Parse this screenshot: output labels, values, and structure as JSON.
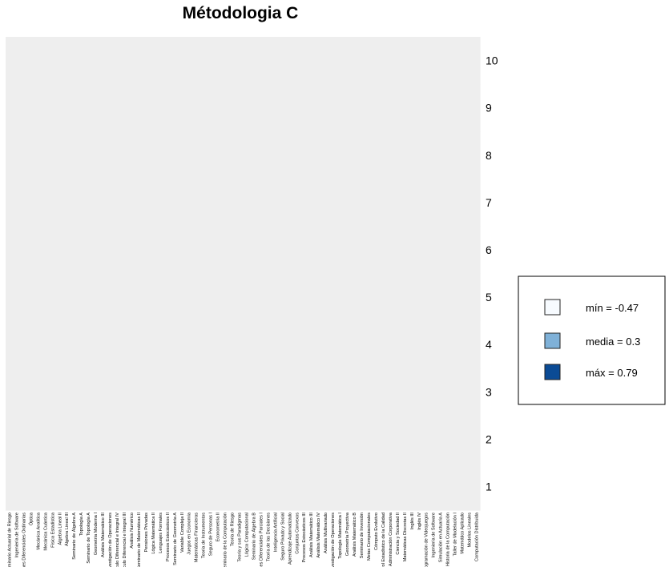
{
  "chart_data": {
    "type": "heatmap",
    "title": "Métodologia C",
    "xlabel": "",
    "ylabel": "",
    "rows": [
      "1",
      "2",
      "3",
      "4",
      "5",
      "6",
      "7",
      "8",
      "9",
      "10"
    ],
    "column_labels": [
      "Seminario Actuarial de Riesgo",
      "Ingeniería de Software",
      "Ecuaciones Diferenciales Ordinarias",
      "Óptica",
      "Mecánica Analítica",
      "Mecánica Cuántica",
      "Física Estadística",
      "Álgebra Lineal II",
      "Álgebra Lineal III",
      "Seminario de Álgebra A",
      "Topología A",
      "Seminario de Topología A",
      "Geometría Moderna I",
      "Análisis Matemático III",
      "Investigación de Operaciones",
      "Cálculo Diferencial e Integral IV",
      "Cálculo Diferencial e Integral III",
      "Análisis Numérico",
      "Seminario de Matemáticas II",
      "Pensiones Privadas",
      "Lógica Matemática II",
      "Lenguajes Formales",
      "Procesos Estocásticos II",
      "Seminario de Geometría A",
      "Variable Compleja II",
      "Juegos en Economía",
      "Matemáticas Financieras",
      "Teoría de Instrumentos",
      "Seguro de Personas I",
      "Econometría II",
      "Seminario de la Computación",
      "Teoría de Riesgo",
      "Teoría y sus Paradigmas",
      "Lógica Computacional",
      "Seminario de Álgebra B",
      "Ecuaciones Diferenciales Parciales I",
      "Teoría de las Decisiones",
      "Inteligencia Artificial",
      "Seguro Privado y Social",
      "Aprendizaje Automatizado",
      "Conjuntos Convexos",
      "Procesos Estocásticos III",
      "Análisis Matemático III",
      "Análisis Matemático IV",
      "Análisis Multivariado",
      "Investigación de Operaciones",
      "Topología Matemática I",
      "Geometría Proyectiva",
      "Análisis Matemático B",
      "Seminario de Inversión",
      "Metas Computacionales",
      "Cómputo Evolutivo",
      "Control Estadístico de la Calidad",
      "Administración Corporativa",
      "Ciencia y Sociedad II",
      "Matemáticas Discretas II",
      "Inglés III",
      "Inglés IV",
      "Programación de Videojuegos",
      "Ingeniería de Software",
      "Simulación en Actuaría A",
      "Historia de la Computación",
      "Taller de Modelación I",
      "Matemático Aplicado",
      "Modelos Lineales",
      "Computación Distribuida"
    ],
    "values": [],
    "value_range": [
      -0.47,
      0.79
    ],
    "color_scale": {
      "min": "#f7fbff",
      "mid": "#7bafd6",
      "max": "#0b4b95"
    },
    "legend": {
      "position": "right",
      "entries": [
        {
          "label": "mín = -0.47",
          "color": "#f7fbff"
        },
        {
          "label": "media = 0.3",
          "color": "#7fb1d8"
        },
        {
          "label": "máx = 0.79",
          "color": "#0b4b95"
        }
      ]
    },
    "grid": false
  }
}
